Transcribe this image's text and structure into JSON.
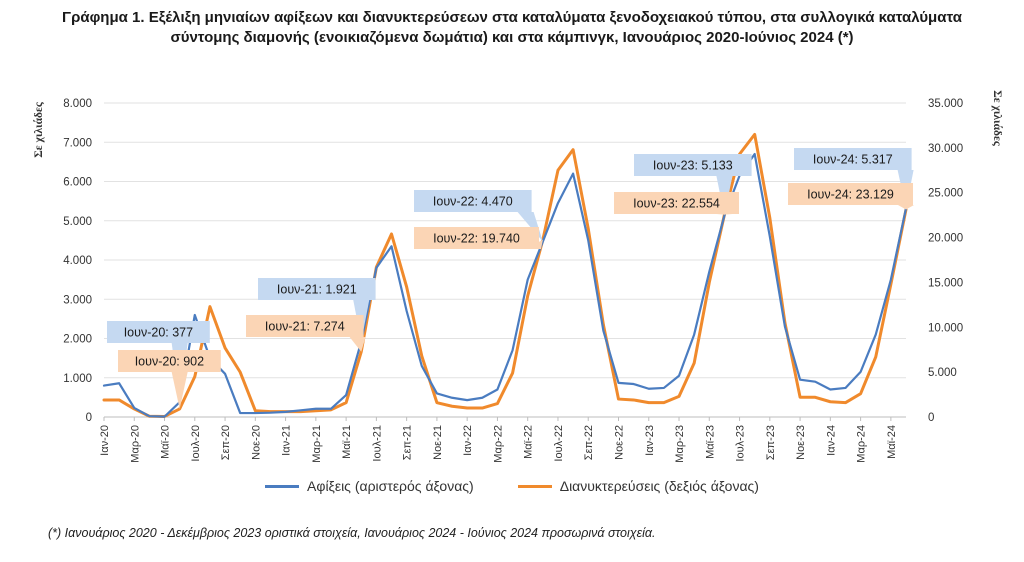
{
  "title": {
    "line1": "Γράφημα 1. Εξέλιξη μηνιαίων αφίξεων και διανυκτερεύσεων στα καταλύματα ξενοδοχειακού τύπου, στα συλλογικά καταλύματα",
    "line2": "σύντομης διαμονής (ενοικιαζόμενα δωμάτια) και στα κάμπινγκ, Ιανουάριος 2020-Ιούνιος 2024 (*)"
  },
  "footnote": "(*) Ιανουάριος 2020 - Δεκέμβριος 2023 οριστικά στοιχεία, Ιανουάριος 2024 - Ιούνιος 2024 προσωρινά στοιχεία.",
  "chart_data": {
    "type": "line",
    "y_left_label": "Σε χιλιάδες",
    "y_right_label": "Σε χιλιάδες",
    "y_left_range": [
      0,
      8000
    ],
    "y_right_range": [
      0,
      35000
    ],
    "y_left_ticks": [
      "0",
      "1.000",
      "2.000",
      "3.000",
      "4.000",
      "5.000",
      "6.000",
      "7.000",
      "8.000"
    ],
    "y_right_ticks": [
      "0",
      "5.000",
      "10.000",
      "15.000",
      "20.000",
      "25.000",
      "30.000",
      "35.000"
    ],
    "x_tick_labels": [
      "Ιαν-20",
      "Μαρ-20",
      "Μαϊ-20",
      "Ιουλ-20",
      "Σεπ-20",
      "Νοε-20",
      "Ιαν-21",
      "Μαρ-21",
      "Μαϊ-21",
      "Ιουλ-21",
      "Σεπ-21",
      "Νοε-21",
      "Ιαν-22",
      "Μαρ-22",
      "Μαϊ-22",
      "Ιουλ-22",
      "Σεπ-22",
      "Νοε-22",
      "Ιαν-23",
      "Μαρ-23",
      "Μαϊ-23",
      "Ιουλ-23",
      "Σεπ-23",
      "Νοε-23",
      "Ιαν-24",
      "Μαρ-24",
      "Μαϊ-24"
    ],
    "grid": true,
    "legend_position": "bottom",
    "series": [
      {
        "name": "Αφίξεις (αριστερός άξονας)",
        "axis": "left",
        "color": "#4a7cc0",
        "values": [
          800,
          860,
          230,
          20,
          10,
          377,
          2600,
          1500,
          1100,
          100,
          100,
          110,
          130,
          170,
          210,
          210,
          560,
          1921,
          3800,
          4350,
          2700,
          1300,
          600,
          490,
          430,
          490,
          700,
          1700,
          3500,
          4470,
          5450,
          6200,
          4500,
          2200,
          870,
          840,
          720,
          740,
          1050,
          2100,
          3700,
          5133,
          6150,
          6700,
          4600,
          2300,
          950,
          900,
          700,
          740,
          1150,
          2100,
          3500,
          5317
        ]
      },
      {
        "name": "Διανυκτερεύσεις (δεξιός άξονας)",
        "axis": "right",
        "color": "#f08a2c",
        "values": [
          1900,
          1900,
          900,
          80,
          60,
          902,
          4500,
          12300,
          7700,
          5000,
          700,
          600,
          600,
          600,
          700,
          800,
          1600,
          7274,
          16700,
          20400,
          14500,
          6800,
          1600,
          1200,
          1000,
          1000,
          1500,
          4900,
          13500,
          19740,
          27500,
          29800,
          21000,
          10300,
          2000,
          1900,
          1600,
          1600,
          2300,
          6000,
          15000,
          22554,
          29300,
          31500,
          22200,
          10500,
          2200,
          2200,
          1700,
          1600,
          2600,
          6700,
          14800,
          23129
        ]
      }
    ],
    "annotations": [
      {
        "series": "left",
        "month_index": 5,
        "text": "Ιουν-20: 377"
      },
      {
        "series": "right",
        "month_index": 5,
        "text": "Ιουν-20: 902"
      },
      {
        "series": "left",
        "month_index": 17,
        "text": "Ιουν-21: 1.921"
      },
      {
        "series": "right",
        "month_index": 17,
        "text": "Ιουν-21: 7.274"
      },
      {
        "series": "left",
        "month_index": 29,
        "text": "Ιουν-22: 4.470"
      },
      {
        "series": "right",
        "month_index": 29,
        "text": "Ιουν-22: 19.740"
      },
      {
        "series": "left",
        "month_index": 41,
        "text": "Ιουν-23: 5.133"
      },
      {
        "series": "right",
        "month_index": 41,
        "text": "Ιουν-23: 22.554"
      },
      {
        "series": "left",
        "month_index": 53,
        "text": "Ιουν-24: 5.317"
      },
      {
        "series": "right",
        "month_index": 53,
        "text": "Ιουν-24: 23.129"
      }
    ]
  }
}
